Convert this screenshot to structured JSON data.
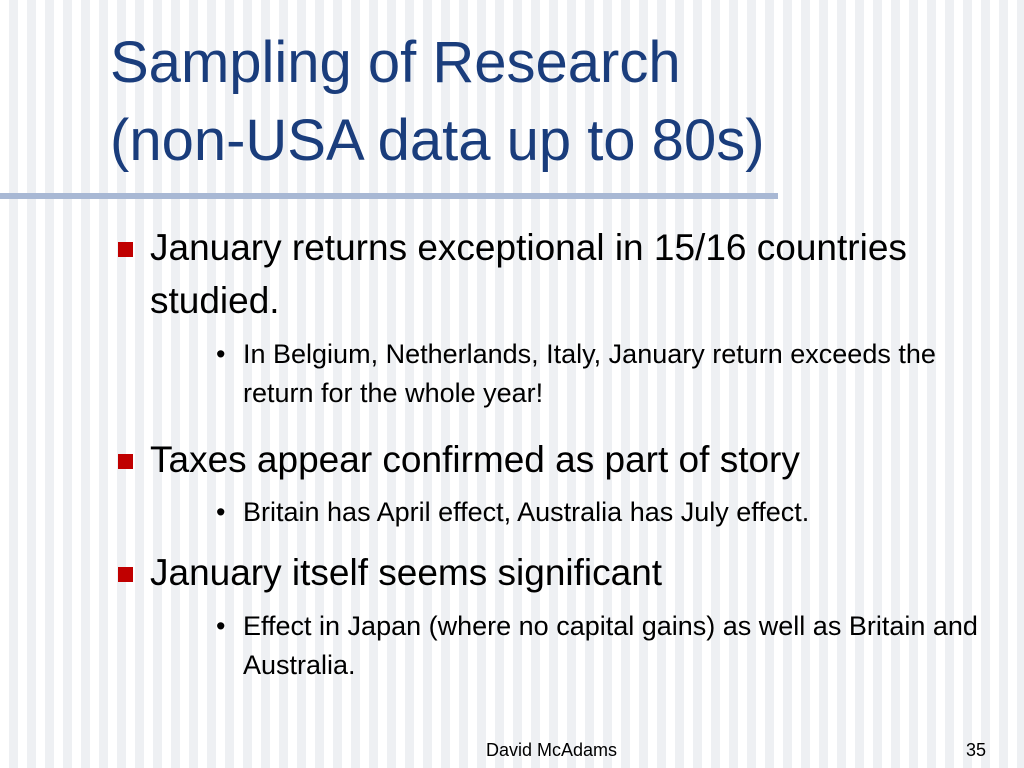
{
  "slide": {
    "title": [
      "Sampling of Research",
      "(non-USA data up to 80s)"
    ],
    "bullets": [
      {
        "text": "January returns exceptional in 15/16 countries studied.",
        "sub": [
          "In Belgium, Netherlands, Italy, January return exceeds the return for the whole year!"
        ]
      },
      {
        "text": "Taxes appear confirmed as part of story",
        "sub": [
          "Britain has April effect, Australia has July effect."
        ]
      },
      {
        "text": "January itself seems significant",
        "sub": [
          "Effect in Japan (where no capital gains) as well as Britain and Australia."
        ]
      }
    ],
    "footer": {
      "author": "David McAdams",
      "page": "35"
    }
  }
}
